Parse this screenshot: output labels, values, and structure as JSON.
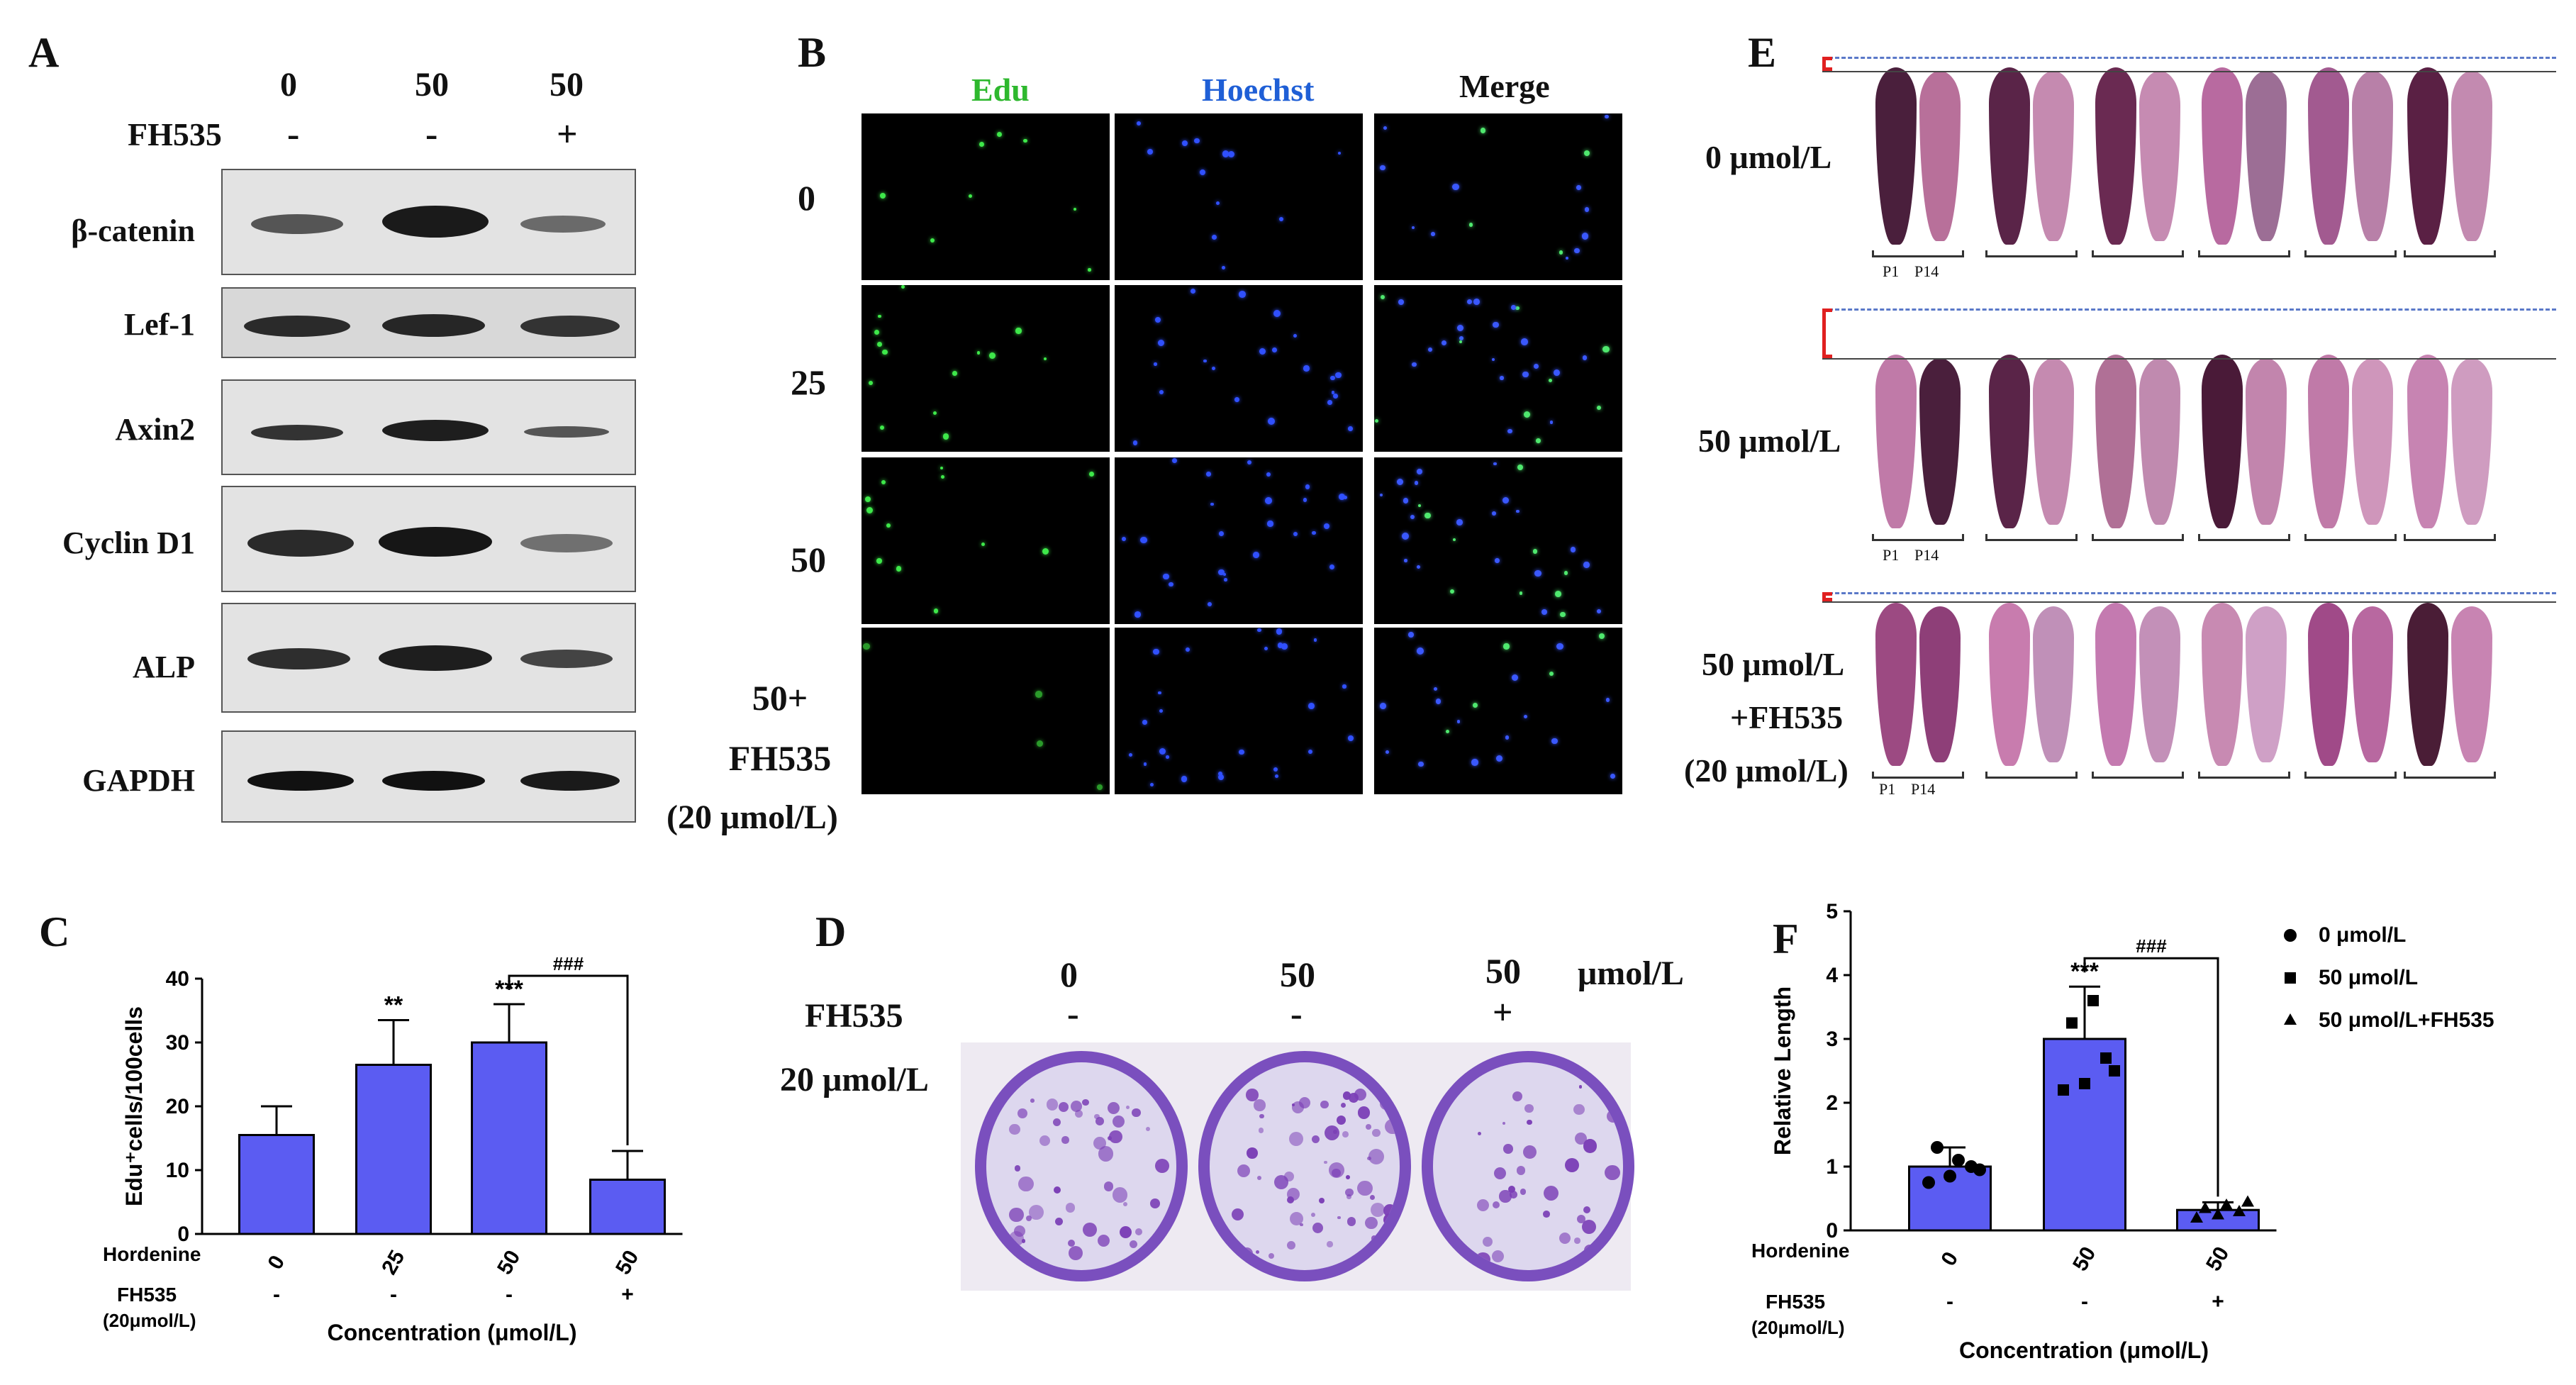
{
  "panel_letters": {
    "a": "A",
    "b": "B",
    "c": "C",
    "d": "D",
    "e": "E",
    "f": "F"
  },
  "panel_a": {
    "conc": [
      "0",
      "50",
      "50"
    ],
    "fh535_label": "FH535",
    "fh535": [
      "-",
      "-",
      "+"
    ],
    "proteins": [
      "β-catenin",
      "Lef-1",
      "Axin2",
      "Cyclin D1",
      "ALP",
      "GAPDH"
    ]
  },
  "panel_b": {
    "cols": [
      "Edu",
      "Hoechst",
      "Merge"
    ],
    "col_colors": [
      "#2eb82e",
      "#1f5fd6",
      "#111111"
    ],
    "rows": [
      "0",
      "25",
      "50"
    ],
    "row4": [
      "50+",
      "FH535",
      "(20 μmol/L)"
    ]
  },
  "panel_e": {
    "rows": [
      "0 μmol/L",
      "50 μmol/L"
    ],
    "row3": [
      "50 μmol/L",
      "+FH535",
      "(20 μmol/L)"
    ],
    "p1": "P1",
    "p14": "P14"
  },
  "panel_d": {
    "conc": [
      "0",
      "50",
      "50"
    ],
    "unit": "μmol/L",
    "fh535_label": "FH535",
    "fh535": [
      "-",
      "-",
      "+"
    ],
    "dose": "20 μmol/L"
  },
  "chart_data": [
    {
      "type": "bar",
      "panel": "C",
      "categories": [
        "0",
        "25",
        "50",
        "50"
      ],
      "values": [
        15.5,
        26.5,
        30.0,
        8.5
      ],
      "errors": [
        4.5,
        7.0,
        6.0,
        4.5
      ],
      "significance": [
        "",
        "**",
        "***",
        ""
      ],
      "comparison": {
        "from": 2,
        "to": 3,
        "label": "###"
      },
      "ylabel": "Edu⁺cells/100cells",
      "ylim": [
        0,
        40
      ],
      "yticks": [
        "0",
        "10",
        "20",
        "30",
        "40"
      ],
      "row1_label": "Hordenine",
      "row2_label": "FH535",
      "row2_sub": "(20μmol/L)",
      "fh535": [
        "-",
        "-",
        "-",
        "+"
      ],
      "xlabel": "Concentration (μmol/L)",
      "bar_color": "#5b5cf2"
    },
    {
      "type": "bar",
      "panel": "F",
      "categories": [
        "0",
        "50",
        "50"
      ],
      "values": [
        1.0,
        3.0,
        0.32
      ],
      "errors": [
        0.3,
        0.82,
        0.12
      ],
      "points": [
        [
          0.75,
          0.85,
          1.0,
          1.3,
          1.1,
          0.95
        ],
        [
          2.2,
          2.3,
          2.7,
          3.25,
          3.6,
          2.5
        ],
        [
          0.2,
          0.25,
          0.3,
          0.35,
          0.4,
          0.45
        ]
      ],
      "significance": [
        "",
        "***",
        ""
      ],
      "comparison": {
        "from": 1,
        "to": 2,
        "label": "###"
      },
      "ylabel": "Relative Length",
      "ylim": [
        0,
        5
      ],
      "yticks": [
        "0",
        "1",
        "2",
        "3",
        "4",
        "5"
      ],
      "row1_label": "Hordenine",
      "row2_label": "FH535",
      "row2_sub": "(20μmol/L)",
      "fh535": [
        "-",
        "-",
        "+"
      ],
      "xlabel": "Concentration (μmol/L)",
      "legend": [
        "0 μmol/L",
        "50 μmol/L",
        "50 μmol/L+FH535"
      ],
      "legend_position": "right",
      "bar_color": "#5b5cf2"
    }
  ]
}
